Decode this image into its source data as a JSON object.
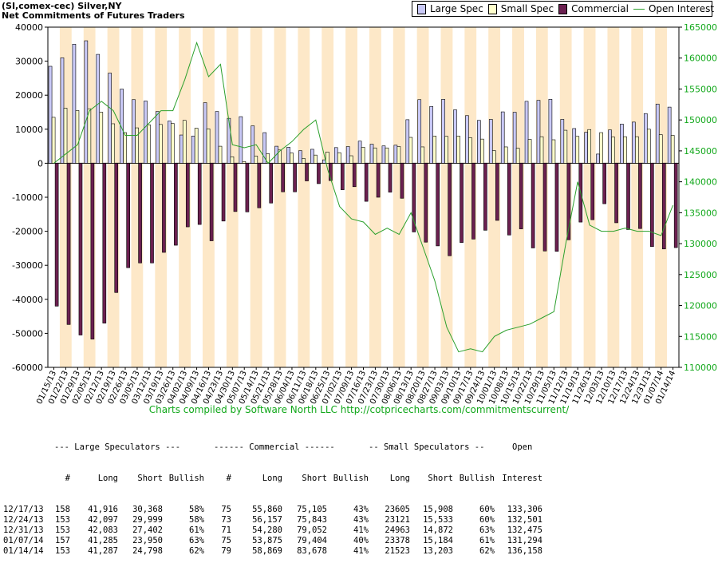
{
  "header": {
    "title_line1": "(SI,comex-cec) Silver,NY",
    "title_line2": "Net Commitments of Futures Traders"
  },
  "legend": {
    "items": [
      {
        "label": "Large Spec",
        "color": "#c9c9f7"
      },
      {
        "label": "Small Spec",
        "color": "#ffffcc"
      },
      {
        "label": "Commercial",
        "color": "#6b2050"
      },
      {
        "label": "Open Interest",
        "color": "#2ca02c"
      }
    ]
  },
  "chart_data": {
    "type": "bar",
    "x": [
      "01/15/13",
      "01/22/13",
      "01/29/13",
      "02/05/13",
      "02/12/13",
      "02/19/13",
      "02/26/13",
      "03/05/13",
      "03/12/13",
      "03/19/13",
      "03/26/13",
      "04/02/13",
      "04/09/13",
      "04/16/13",
      "04/23/13",
      "04/30/13",
      "05/07/13",
      "05/14/13",
      "05/21/13",
      "05/28/13",
      "06/04/13",
      "06/11/13",
      "06/18/13",
      "06/25/13",
      "07/02/13",
      "07/09/13",
      "07/16/13",
      "07/23/13",
      "07/30/13",
      "08/06/13",
      "08/13/13",
      "08/20/13",
      "08/27/13",
      "09/03/13",
      "09/10/13",
      "09/17/13",
      "09/24/13",
      "10/01/13",
      "10/08/13",
      "10/15/13",
      "10/22/13",
      "10/29/13",
      "11/05/13",
      "11/12/13",
      "11/19/13",
      "11/26/13",
      "12/03/13",
      "12/10/13",
      "12/17/13",
      "12/24/13",
      "12/31/13",
      "01/07/14",
      "01/14/14"
    ],
    "x_tick_labels": [
      "01/15/13",
      "01/22/13",
      "01/29/13",
      "02/05/13",
      "02/12/13",
      "02/19/13",
      "02/26/13",
      "03/05/13",
      "03/12/13",
      "03/19/13",
      "03/26/13",
      "04/02/13",
      "04/09/13",
      "04/16/13",
      "04/23/13",
      "04/30/13",
      "05/07/13",
      "05/14/13",
      "05/21/13",
      "05/28/13",
      "06/04/13",
      "06/11/13",
      "06/18/13",
      "06/25/13",
      "07/02/13",
      "07/09/13",
      "07/16/13",
      "07/23/13",
      "07/30/13",
      "08/06/13",
      "08/13/13",
      "08/20/13",
      "08/27/13",
      "09/03/13",
      "09/10/13",
      "09/17/13",
      "09/24/13",
      "10/01/13",
      "10/08/13",
      "10/15/13",
      "10/22/13",
      "10/29/13",
      "11/05/13",
      "11/12/13",
      "11/19/13",
      "11/26/13",
      "12/03/13",
      "12/10/13",
      "12/17/13",
      "12/24/13",
      "12/31/13",
      "01/07/14",
      "01/14/14"
    ],
    "series": [
      {
        "name": "Large Spec",
        "color": "#c9c9f7",
        "values": [
          28500,
          31000,
          35000,
          36000,
          32000,
          26500,
          21800,
          18700,
          18300,
          15200,
          12400,
          8300,
          8000,
          17800,
          15200,
          13200,
          13700,
          11000,
          9000,
          5000,
          4700,
          3700,
          4100,
          1000,
          4600,
          4900,
          6500,
          5600,
          5100,
          5300,
          12800,
          18700,
          16700,
          18800,
          15700,
          14000,
          12600,
          12900,
          15100,
          15000,
          18200,
          18500,
          18800,
          12900,
          10200,
          9100,
          2700,
          9800,
          11500,
          12100,
          14600,
          17400,
          16500
        ]
      },
      {
        "name": "Small Spec",
        "color": "#ffffcc",
        "values": [
          13500,
          16200,
          15500,
          16000,
          15000,
          11600,
          9000,
          10400,
          11300,
          11400,
          11700,
          12600,
          10300,
          10100,
          5000,
          1900,
          500,
          2100,
          2800,
          3900,
          3000,
          1400,
          2400,
          3300,
          3100,
          2200,
          4700,
          4500,
          4500,
          4900,
          7600,
          4800,
          8000,
          7900,
          8000,
          7500,
          7100,
          3700,
          4800,
          4400,
          7000,
          7800,
          6900,
          9700,
          7900,
          9900,
          9000,
          7700,
          7800,
          7800,
          10000,
          8400,
          8200
        ]
      },
      {
        "name": "Commercial",
        "color": "#6b2050",
        "values": [
          -42000,
          -47400,
          -50500,
          -51700,
          -47000,
          -38000,
          -30700,
          -29300,
          -29300,
          -26200,
          -24100,
          -18700,
          -18000,
          -22800,
          -17000,
          -14200,
          -14300,
          -13100,
          -11700,
          -8400,
          -8400,
          -5200,
          -6000,
          -5100,
          -7800,
          -6900,
          -11200,
          -10000,
          -8500,
          -10300,
          -20200,
          -23200,
          -24300,
          -27200,
          -23300,
          -22300,
          -19700,
          -16800,
          -21100,
          -19300,
          -24900,
          -25800,
          -25900,
          -22500,
          -17300,
          -16600,
          -11900,
          -17500,
          -19500,
          -19200,
          -24500,
          -25200,
          -24800
        ]
      },
      {
        "name": "Open Interest",
        "color": "#2ca02c",
        "axis": "right",
        "values": [
          143000,
          144500,
          146000,
          151500,
          153000,
          151500,
          147500,
          147500,
          149500,
          151500,
          151500,
          156500,
          162500,
          157000,
          159000,
          146000,
          145500,
          146000,
          143000,
          145000,
          146500,
          148500,
          150000,
          142000,
          136000,
          134000,
          133500,
          131500,
          132500,
          131500,
          135000,
          129500,
          124000,
          116500,
          112500,
          113000,
          112500,
          115000,
          116000,
          116500,
          117000,
          118000,
          119000,
          130000,
          140000,
          133000,
          132000,
          132000,
          132500,
          132000,
          132000,
          131300,
          136200
        ]
      }
    ],
    "title": "Net Commitments of Futures Traders",
    "ylim": [
      -60000,
      40000
    ],
    "y_ticks": [
      40000,
      30000,
      20000,
      10000,
      0,
      -10000,
      -20000,
      -30000,
      -40000,
      -50000,
      -60000
    ],
    "y2lim": [
      110000,
      165000
    ],
    "y2_ticks": [
      165000,
      160000,
      155000,
      150000,
      145000,
      140000,
      135000,
      130000,
      125000,
      120000,
      115000,
      110000
    ],
    "legend_position": "top-right",
    "grid": false
  },
  "credit": {
    "text": "Charts compiled by Software North LLC  http://cotpricecharts.com/commitmentscurrent/"
  },
  "table": {
    "group_headers": [
      "--- Large Speculators ---",
      "------ Commercial ------",
      "-- Small Speculators --",
      "Open"
    ],
    "columns": [
      "#",
      "Long",
      "Short",
      "Bullish",
      "#",
      "Long",
      "Short",
      "Bullish",
      "Long",
      "Short",
      "Bullish",
      "Interest"
    ],
    "rows": [
      {
        "date": "12/17/13",
        "ls_n": "158",
        "ls_long": "41,916",
        "ls_short": "30,368",
        "ls_bull": "58%",
        "c_n": "75",
        "c_long": "55,860",
        "c_short": "75,105",
        "c_bull": "43%",
        "ss_long": "23605",
        "ss_short": "15,908",
        "ss_bull": "60%",
        "oi": "133,306"
      },
      {
        "date": "12/24/13",
        "ls_n": "153",
        "ls_long": "42,097",
        "ls_short": "29,999",
        "ls_bull": "58%",
        "c_n": "73",
        "c_long": "56,157",
        "c_short": "75,843",
        "c_bull": "43%",
        "ss_long": "23121",
        "ss_short": "15,533",
        "ss_bull": "60%",
        "oi": "132,501"
      },
      {
        "date": "12/31/13",
        "ls_n": "153",
        "ls_long": "42,083",
        "ls_short": "27,402",
        "ls_bull": "61%",
        "c_n": "71",
        "c_long": "54,280",
        "c_short": "79,052",
        "c_bull": "41%",
        "ss_long": "24963",
        "ss_short": "14,872",
        "ss_bull": "63%",
        "oi": "132,475"
      },
      {
        "date": "01/07/14",
        "ls_n": "157",
        "ls_long": "41,285",
        "ls_short": "23,950",
        "ls_bull": "63%",
        "c_n": "75",
        "c_long": "53,875",
        "c_short": "79,404",
        "c_bull": "40%",
        "ss_long": "23378",
        "ss_short": "15,184",
        "ss_bull": "61%",
        "oi": "131,294"
      },
      {
        "date": "01/14/14",
        "ls_n": "153",
        "ls_long": "41,287",
        "ls_short": "24,798",
        "ls_bull": "62%",
        "c_n": "79",
        "c_long": "58,869",
        "c_short": "83,678",
        "c_bull": "41%",
        "ss_long": "21523",
        "ss_short": "13,203",
        "ss_bull": "62%",
        "oi": "136,158"
      }
    ]
  }
}
